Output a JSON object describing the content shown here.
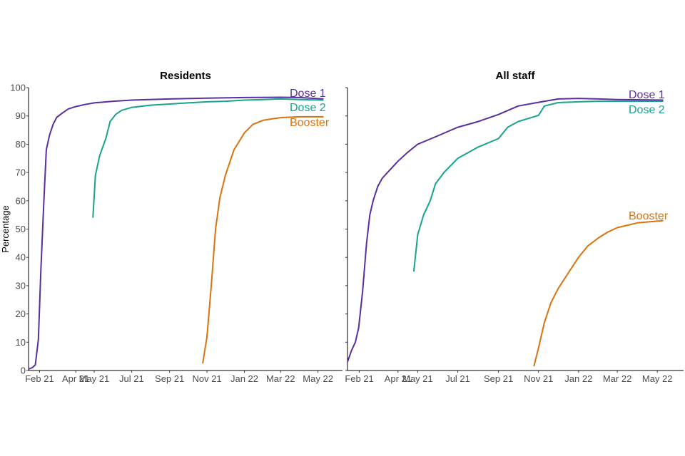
{
  "chart_data": [
    {
      "type": "line",
      "title": "Residents",
      "ylabel": "Percentage",
      "ylim": [
        0,
        100
      ],
      "yticks": [
        "0",
        "10",
        "20",
        "30",
        "40",
        "50",
        "60",
        "70",
        "80",
        "90",
        "100"
      ],
      "x_tick_labels": [
        "Feb 21",
        "Apr 21",
        "May 21",
        "Jul 21",
        "Sep 21",
        "Nov 21",
        "Jan 22",
        "Mar 22",
        "May 22"
      ],
      "x_tick_dates": [
        "2021-02-01",
        "2021-04-01",
        "2021-05-01",
        "2021-07-01",
        "2021-09-01",
        "2021-11-01",
        "2022-01-01",
        "2022-03-01",
        "2022-05-01"
      ],
      "xlim": [
        "2021-01-14",
        "2022-06-10"
      ],
      "series": [
        {
          "name": "Dose 1",
          "color": "#5b2d9e",
          "points": [
            [
              "2021-01-14",
              0.5
            ],
            [
              "2021-01-20",
              1
            ],
            [
              "2021-01-25",
              2
            ],
            [
              "2021-01-30",
              11
            ],
            [
              "2021-02-03",
              35
            ],
            [
              "2021-02-08",
              60
            ],
            [
              "2021-02-12",
              78
            ],
            [
              "2021-02-17",
              83
            ],
            [
              "2021-02-23",
              87
            ],
            [
              "2021-03-01",
              89.5
            ],
            [
              "2021-03-10",
              91
            ],
            [
              "2021-03-20",
              92.5
            ],
            [
              "2021-04-01",
              93.3
            ],
            [
              "2021-04-15",
              94
            ],
            [
              "2021-05-01",
              94.6
            ],
            [
              "2021-06-01",
              95.2
            ],
            [
              "2021-07-01",
              95.6
            ],
            [
              "2021-09-01",
              96
            ],
            [
              "2021-11-01",
              96.3
            ],
            [
              "2022-01-01",
              96.5
            ],
            [
              "2022-03-01",
              96.6
            ],
            [
              "2022-04-01",
              96.5
            ],
            [
              "2022-05-10",
              96
            ]
          ]
        },
        {
          "name": "Dose 2",
          "color": "#17a38f",
          "points": [
            [
              "2021-04-29",
              54
            ],
            [
              "2021-05-03",
              69
            ],
            [
              "2021-05-10",
              76
            ],
            [
              "2021-05-20",
              82
            ],
            [
              "2021-05-27",
              88
            ],
            [
              "2021-06-05",
              90.5
            ],
            [
              "2021-06-15",
              92
            ],
            [
              "2021-07-01",
              93
            ],
            [
              "2021-08-01",
              93.8
            ],
            [
              "2021-09-01",
              94.2
            ],
            [
              "2021-10-01",
              94.6
            ],
            [
              "2021-11-01",
              95
            ],
            [
              "2021-12-01",
              95.2
            ],
            [
              "2022-01-01",
              95.6
            ],
            [
              "2022-02-01",
              95.8
            ],
            [
              "2022-03-01",
              96
            ],
            [
              "2022-04-01",
              95.8
            ],
            [
              "2022-05-10",
              95.6
            ]
          ]
        },
        {
          "name": "Booster",
          "color": "#d9730d",
          "points": [
            [
              "2021-10-25",
              2.5
            ],
            [
              "2021-11-01",
              12
            ],
            [
              "2021-11-08",
              30
            ],
            [
              "2021-11-15",
              50
            ],
            [
              "2021-11-22",
              61
            ],
            [
              "2021-12-01",
              69
            ],
            [
              "2021-12-15",
              78
            ],
            [
              "2022-01-01",
              84
            ],
            [
              "2022-01-15",
              87
            ],
            [
              "2022-02-01",
              88.5
            ],
            [
              "2022-03-01",
              89.4
            ],
            [
              "2022-04-01",
              89.7
            ],
            [
              "2022-05-10",
              89.7
            ]
          ]
        }
      ]
    },
    {
      "type": "line",
      "title": "All staff",
      "ylim": [
        0,
        100
      ],
      "x_tick_labels": [
        "Feb 21",
        "Apr 21",
        "May 21",
        "Jul 21",
        "Sep 21",
        "Nov 21",
        "Jan 22",
        "Mar 22",
        "May 22"
      ],
      "x_tick_dates": [
        "2021-02-01",
        "2021-04-01",
        "2021-05-01",
        "2021-07-01",
        "2021-09-01",
        "2021-11-01",
        "2022-01-01",
        "2022-03-01",
        "2022-05-01"
      ],
      "xlim": [
        "2021-01-14",
        "2022-06-10"
      ],
      "series": [
        {
          "name": "Dose 1",
          "color": "#5b2d9e",
          "points": [
            [
              "2021-01-14",
              3
            ],
            [
              "2021-01-20",
              7
            ],
            [
              "2021-01-26",
              10
            ],
            [
              "2021-01-31",
              15
            ],
            [
              "2021-02-06",
              28
            ],
            [
              "2021-02-12",
              45
            ],
            [
              "2021-02-17",
              55
            ],
            [
              "2021-02-22",
              60
            ],
            [
              "2021-03-01",
              65
            ],
            [
              "2021-03-08",
              68
            ],
            [
              "2021-03-20",
              71
            ],
            [
              "2021-04-01",
              74
            ],
            [
              "2021-04-15",
              77
            ],
            [
              "2021-05-01",
              80
            ],
            [
              "2021-06-01",
              83
            ],
            [
              "2021-07-01",
              86
            ],
            [
              "2021-08-01",
              88
            ],
            [
              "2021-09-01",
              90.5
            ],
            [
              "2021-10-01",
              93.5
            ],
            [
              "2021-11-01",
              94.8
            ],
            [
              "2021-12-01",
              96
            ],
            [
              "2022-01-01",
              96.2
            ],
            [
              "2022-02-01",
              96
            ],
            [
              "2022-03-01",
              95.8
            ],
            [
              "2022-05-10",
              95.6
            ]
          ]
        },
        {
          "name": "Dose 2",
          "color": "#17a38f",
          "points": [
            [
              "2021-04-25",
              35
            ],
            [
              "2021-05-01",
              48
            ],
            [
              "2021-05-10",
              55
            ],
            [
              "2021-05-20",
              60
            ],
            [
              "2021-05-28",
              66
            ],
            [
              "2021-06-10",
              70
            ],
            [
              "2021-07-01",
              75
            ],
            [
              "2021-08-01",
              79
            ],
            [
              "2021-09-01",
              82
            ],
            [
              "2021-09-15",
              86
            ],
            [
              "2021-10-01",
              88
            ],
            [
              "2021-11-01",
              90.2
            ],
            [
              "2021-11-10",
              93.5
            ],
            [
              "2021-12-01",
              94.7
            ],
            [
              "2022-01-01",
              95
            ],
            [
              "2022-02-01",
              95.2
            ],
            [
              "2022-05-10",
              95.2
            ]
          ]
        },
        {
          "name": "Booster",
          "color": "#d9730d",
          "points": [
            [
              "2021-10-25",
              1.5
            ],
            [
              "2021-11-01",
              8
            ],
            [
              "2021-11-10",
              17
            ],
            [
              "2021-11-20",
              24
            ],
            [
              "2021-12-01",
              29
            ],
            [
              "2021-12-15",
              34
            ],
            [
              "2022-01-01",
              40
            ],
            [
              "2022-01-15",
              44
            ],
            [
              "2022-02-01",
              47
            ],
            [
              "2022-02-15",
              49
            ],
            [
              "2022-03-01",
              50.5
            ],
            [
              "2022-04-01",
              52.2
            ],
            [
              "2022-05-10",
              53
            ]
          ]
        }
      ]
    }
  ]
}
